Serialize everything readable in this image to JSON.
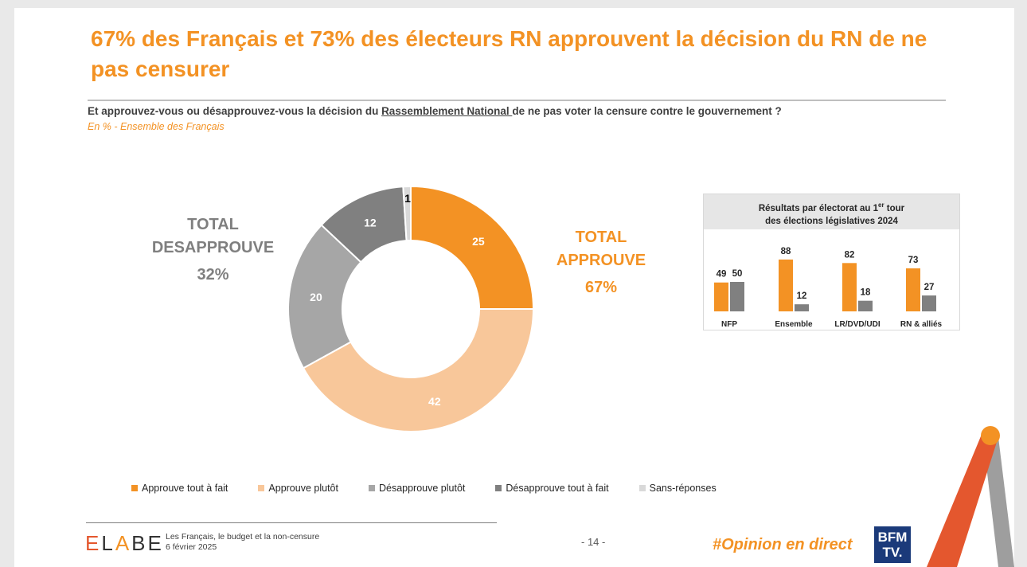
{
  "title": "67% des Français et 73% des électeurs RN approuvent la décision du RN de ne pas censurer",
  "question": {
    "before": "Et approuvez-vous ou désapprouvez-vous la décision du ",
    "underlined": "Rassemblement National ",
    "after": "de ne pas voter la censure contre le gouvernement ?"
  },
  "subtitle": "En % - Ensemble des Français",
  "totals": {
    "disapprove_label": "TOTAL DESAPPROUVE",
    "disapprove_value": "32%",
    "approve_label": "TOTAL APPROUVE",
    "approve_value": "67%"
  },
  "chart_data": [
    {
      "type": "pie",
      "donut": true,
      "title": "",
      "unit": "%",
      "categories": [
        "Approuve tout à fait",
        "Approuve plutôt",
        "Désapprouve plutôt",
        "Désapprouve tout à fait",
        "Sans-réponses"
      ],
      "values": [
        25,
        42,
        20,
        12,
        1
      ],
      "colors": [
        "#f39224",
        "#f8c79a",
        "#a6a6a6",
        "#808080",
        "#d9d9d9"
      ],
      "legend_placement": "bottom"
    },
    {
      "type": "bar",
      "title_line1": "Résultats par électorat au 1",
      "title_sup": "er",
      "title_line1_end": " tour",
      "title_line2": "des élections législatives 2024",
      "categories": [
        "NFP",
        "Ensemble",
        "LR/DVD/UDI",
        "RN & alliés"
      ],
      "series": [
        {
          "values": [
            49,
            88,
            82,
            73
          ],
          "color": "#f39224"
        },
        {
          "values": [
            50,
            12,
            18,
            27
          ],
          "color": "#808080"
        }
      ],
      "ylim": [
        0,
        100
      ]
    }
  ],
  "footer": {
    "brand": "ELABE",
    "line1": "Les Français, le budget et la non-censure",
    "line2": "6 février 2025",
    "page": "- 14 -",
    "hashtag": "#Opinion en direct",
    "tv_logo": "BFM TV."
  }
}
